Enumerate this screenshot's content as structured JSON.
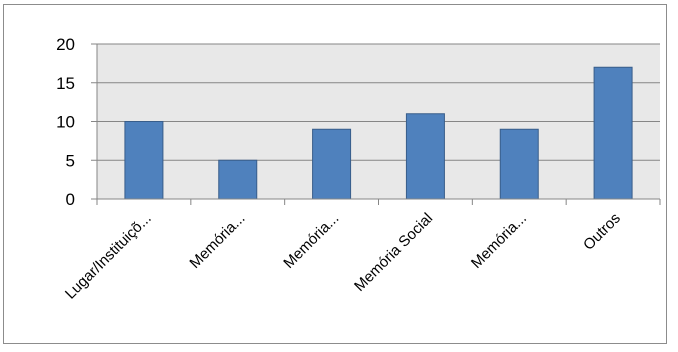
{
  "chart_data": {
    "type": "bar",
    "categories": [
      "Lugar/Instituiçõ...",
      "Memória...",
      "Memória...",
      "Memória Social",
      "Memória...",
      "Outros"
    ],
    "values": [
      10,
      5,
      9,
      11,
      9,
      17
    ],
    "title": "",
    "xlabel": "",
    "ylabel": "",
    "ylim": [
      0,
      20
    ],
    "yticks": [
      0,
      5,
      10,
      15,
      20
    ],
    "grid": true,
    "legend": "none",
    "colors": {
      "bar_fill": "#4f81bd",
      "bar_stroke": "#385d8a",
      "plot_background": "#e8e8e8",
      "gridline": "#868686",
      "axis": "#868686"
    }
  }
}
